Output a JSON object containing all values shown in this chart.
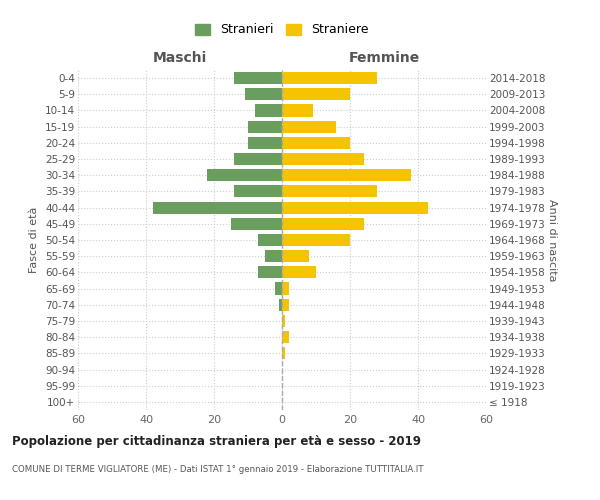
{
  "age_groups": [
    "100+",
    "95-99",
    "90-94",
    "85-89",
    "80-84",
    "75-79",
    "70-74",
    "65-69",
    "60-64",
    "55-59",
    "50-54",
    "45-49",
    "40-44",
    "35-39",
    "30-34",
    "25-29",
    "20-24",
    "15-19",
    "10-14",
    "5-9",
    "0-4"
  ],
  "birth_years": [
    "≤ 1918",
    "1919-1923",
    "1924-1928",
    "1929-1933",
    "1934-1938",
    "1939-1943",
    "1944-1948",
    "1949-1953",
    "1954-1958",
    "1959-1963",
    "1964-1968",
    "1969-1973",
    "1974-1978",
    "1979-1983",
    "1984-1988",
    "1989-1993",
    "1994-1998",
    "1999-2003",
    "2004-2008",
    "2009-2013",
    "2014-2018"
  ],
  "maschi": [
    0,
    0,
    0,
    0,
    0,
    0,
    1,
    2,
    7,
    5,
    7,
    15,
    38,
    14,
    22,
    14,
    10,
    10,
    8,
    11,
    14
  ],
  "femmine": [
    0,
    0,
    0,
    1,
    2,
    1,
    2,
    2,
    10,
    8,
    20,
    24,
    43,
    28,
    38,
    24,
    20,
    16,
    9,
    20,
    28
  ],
  "maschi_color": "#6a9e5e",
  "femmine_color": "#f5c400",
  "background_color": "#ffffff",
  "grid_color": "#cccccc",
  "title": "Popolazione per cittadinanza straniera per età e sesso - 2019",
  "subtitle": "COMUNE DI TERME VIGLIATORE (ME) - Dati ISTAT 1° gennaio 2019 - Elaborazione TUTTITALIA.IT",
  "xlabel_left": "Maschi",
  "xlabel_right": "Femmine",
  "ylabel_left": "Fasce di età",
  "ylabel_right": "Anni di nascita",
  "legend_maschi": "Stranieri",
  "legend_femmine": "Straniere",
  "xlim": 60,
  "bar_height": 0.75,
  "center_line_color": "#aaaaaa",
  "tick_color": "#666666",
  "label_color": "#555555"
}
